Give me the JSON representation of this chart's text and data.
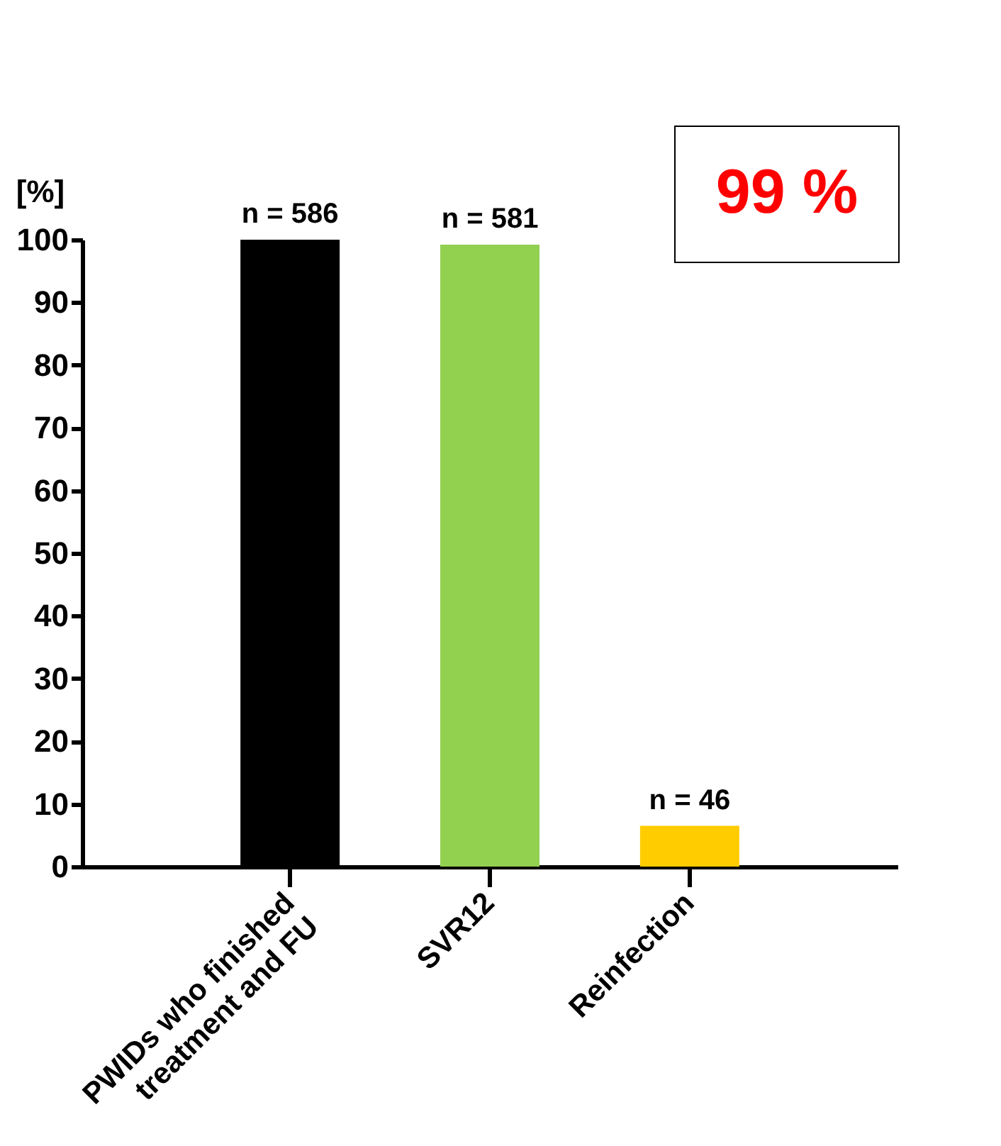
{
  "chart_data": {
    "type": "bar",
    "categories": [
      "PWIDs who finished\ntreatment and FU",
      "SVR12",
      "Reinfection"
    ],
    "values": [
      100,
      99.2,
      6.5
    ],
    "colors": [
      "#000000",
      "#92d050",
      "#ffcc00"
    ],
    "ylabel": "[%]",
    "ylim": [
      0,
      100
    ],
    "yticks": [
      0,
      10,
      20,
      30,
      40,
      50,
      60,
      70,
      80,
      90,
      100
    ],
    "annotations": [
      {
        "text": "n = 586",
        "x": "PWIDs who finished\ntreatment and FU",
        "y": 100
      },
      {
        "text": "n = 581",
        "x": "SVR12",
        "y": 99.2
      },
      {
        "text": "n = 46",
        "x": "Reinfection",
        "y": 6.5
      },
      "99 %"
    ],
    "grid": false
  }
}
